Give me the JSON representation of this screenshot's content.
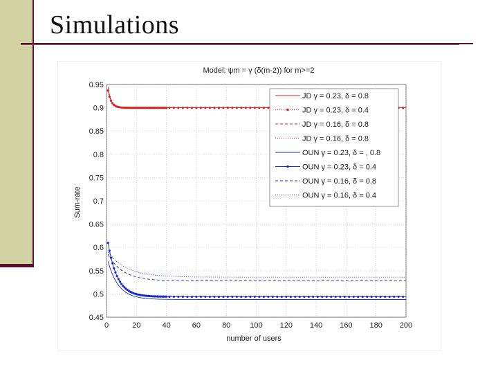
{
  "slide": {
    "title": "Simulations"
  },
  "colors": {
    "red": "#dd2222",
    "blue": "#1a2ad0",
    "sidebar": "#d2d2a2",
    "accent": "#5c1030"
  },
  "chart_data": {
    "type": "line",
    "title": "Model: ψm = γ (δ(m-2)) for m>=2",
    "xlabel": "number of users",
    "ylabel": "Sum-rate",
    "xlim": [
      0,
      200
    ],
    "ylim": [
      0.45,
      0.95
    ],
    "xticks": [
      0,
      20,
      40,
      60,
      80,
      100,
      120,
      140,
      160,
      180,
      200
    ],
    "yticks": [
      0.45,
      0.5,
      0.55,
      0.6,
      0.65,
      0.7,
      0.75,
      0.8,
      0.85,
      0.9,
      0.95
    ],
    "legend": {
      "placement": "top-right"
    },
    "series": [
      {
        "name": "JD γ = 0.23, δ = 0.8",
        "color": "#dd2222",
        "style": "solid",
        "marker": "none",
        "start": 0.945,
        "end": 0.9005,
        "k": 0.5
      },
      {
        "name": "JD γ = 0.23, δ = 0.4",
        "color": "#dd2222",
        "style": "dotted",
        "marker": "dot",
        "start": 0.937,
        "end": 0.9,
        "k": 0.45
      },
      {
        "name": "JD γ = 0.16, δ = 0.8",
        "color": "#dd2222",
        "style": "dashed",
        "marker": "none",
        "start": 0.94,
        "end": 0.9003,
        "k": 0.5
      },
      {
        "name": "JD γ = 0.16, δ = 0.8",
        "color": "#dd2222",
        "style": "dotted",
        "marker": "none",
        "start": 0.938,
        "end": 0.9002,
        "k": 0.5
      },
      {
        "name": "OUN γ = 0.23, δ = , 0.8",
        "color": "#1a2ad0",
        "style": "solid",
        "marker": "none",
        "start": 0.57,
        "end": 0.488,
        "k": 0.14
      },
      {
        "name": "OUN γ = 0.23, δ = 0.4",
        "color": "#1a2ad0",
        "style": "solid",
        "marker": "dot",
        "start": 0.61,
        "end": 0.494,
        "k": 0.16
      },
      {
        "name": "OUN γ = 0.16, δ = 0.8",
        "color": "#1a2ad0",
        "style": "dashed",
        "marker": "none",
        "start": 0.585,
        "end": 0.528,
        "k": 0.1
      },
      {
        "name": "OUN γ = 0.16, δ = 0.4",
        "color": "#1a2ad0",
        "style": "dotted",
        "marker": "none",
        "start": 0.59,
        "end": 0.536,
        "k": 0.08
      }
    ]
  }
}
